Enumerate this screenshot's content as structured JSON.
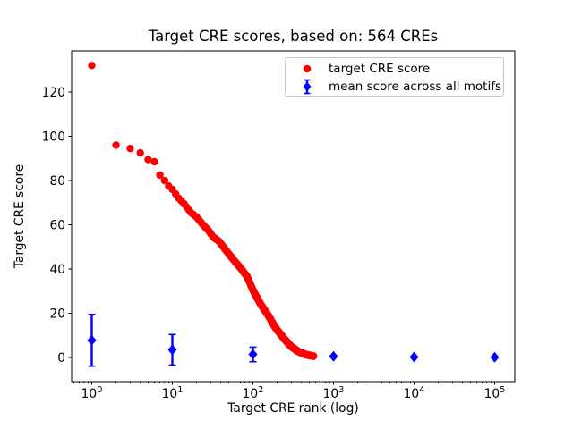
{
  "chart_data": {
    "type": "scatter",
    "title": "Target CRE scores, based on: 564 CREs",
    "xlabel": "Target CRE rank (log)",
    "ylabel": "Target CRE score",
    "n_cres": 564,
    "x_scale": "log",
    "xlim_log10": [
      -0.25,
      5.25
    ],
    "ylim": [
      -10.9,
      138.6
    ],
    "grid": false,
    "background": "#ffffff",
    "xticks": [
      {
        "base": "10",
        "exp": "0",
        "value": 1
      },
      {
        "base": "10",
        "exp": "1",
        "value": 10
      },
      {
        "base": "10",
        "exp": "2",
        "value": 100
      },
      {
        "base": "10",
        "exp": "3",
        "value": 1000
      },
      {
        "base": "10",
        "exp": "4",
        "value": 10000
      },
      {
        "base": "10",
        "exp": "5",
        "value": 100000
      }
    ],
    "yticks": [
      0,
      20,
      40,
      60,
      80,
      100,
      120
    ],
    "legend": {
      "position": "upper right",
      "items": [
        "target CRE score",
        "mean score across all motifs"
      ]
    },
    "series": [
      {
        "name": "target CRE score",
        "type": "scatter",
        "marker": "circle",
        "color": "#ff0000",
        "n_points": 564,
        "note": "scores estimated from plot; points at every integer rank 1..564, interpolated linearly in log10(rank) between anchors",
        "anchors": {
          "rank": [
            1,
            2,
            3,
            4,
            5,
            6,
            7,
            8,
            9,
            10,
            12,
            14,
            17,
            20,
            24,
            28,
            32,
            38,
            45,
            55,
            70,
            85,
            100,
            125,
            155,
            190,
            240,
            295,
            365,
            450,
            564
          ],
          "score": [
            132,
            96,
            94.5,
            92.5,
            89.5,
            88.5,
            82.5,
            80,
            77.5,
            76,
            72,
            69.5,
            65.5,
            63.5,
            60,
            57.5,
            54.5,
            52.5,
            49,
            45,
            40.5,
            36.5,
            30.5,
            24,
            19,
            13.5,
            8.8,
            5.1,
            2.7,
            1.3,
            0.6
          ]
        }
      },
      {
        "name": "mean score across all motifs",
        "type": "errorbar",
        "marker": "diamond",
        "color": "#0000ff",
        "x": [
          1,
          10,
          100,
          1000,
          10000,
          100000
        ],
        "y": [
          7.8,
          3.5,
          1.4,
          0.5,
          0.2,
          0.1
        ],
        "yerr": [
          11.7,
          6.9,
          3.3,
          0,
          0,
          0
        ]
      }
    ]
  },
  "colors": {
    "red": "#ff0000",
    "blue": "#0000ff",
    "spine": "#000000",
    "tick_label": "#000000",
    "legend_border": "#c8c8c8",
    "background": "#ffffff"
  }
}
